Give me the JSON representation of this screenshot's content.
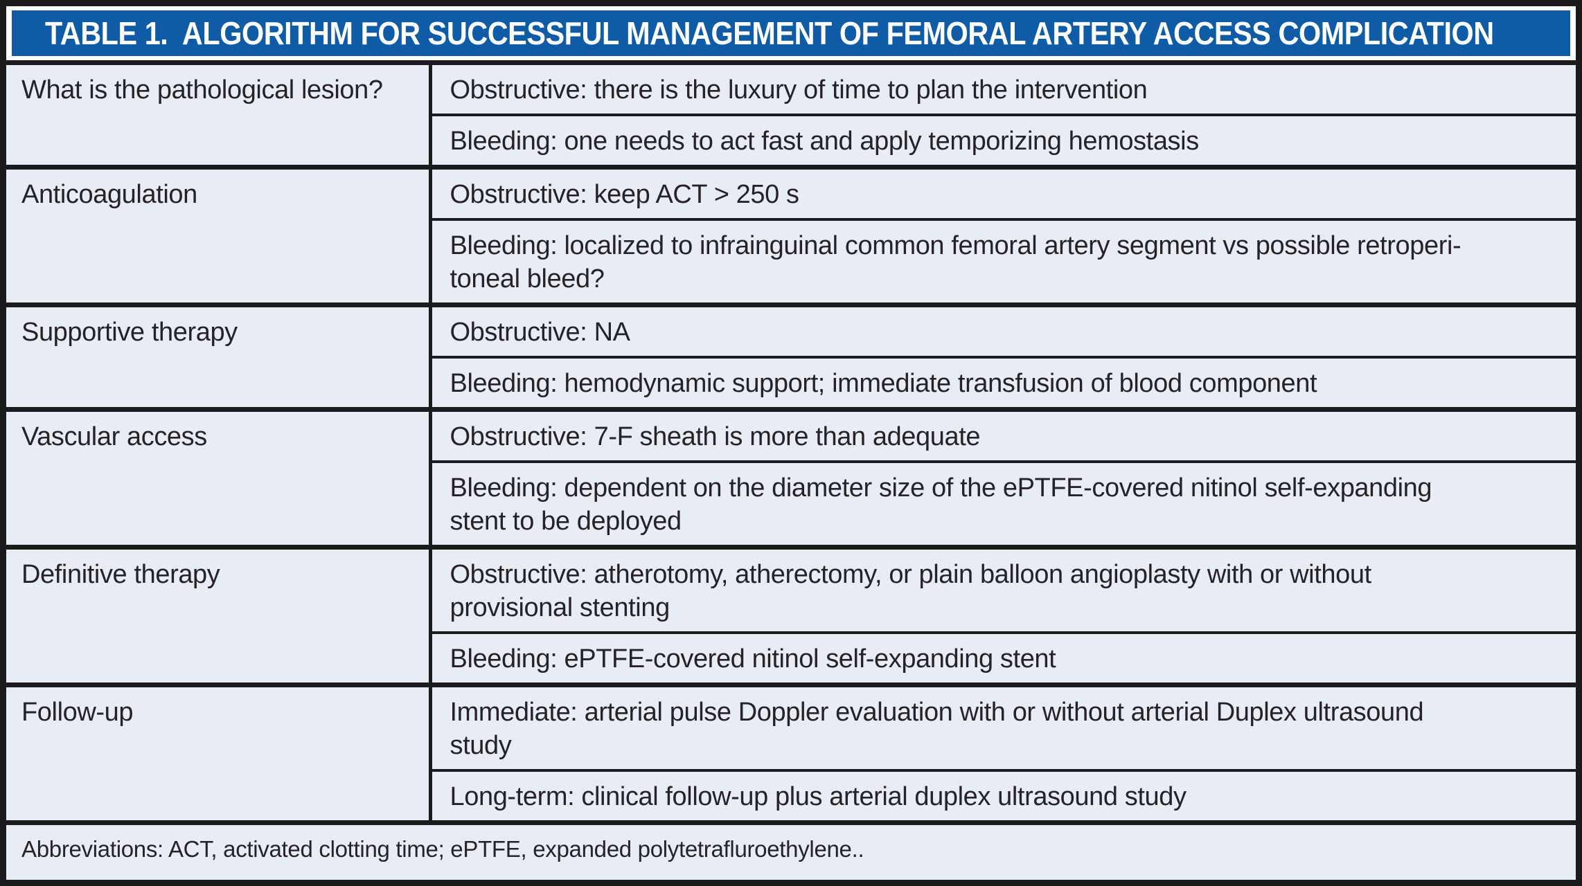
{
  "table": {
    "title": "TABLE 1.  ALGORITHM FOR SUCCESSFUL MANAGEMENT OF FEMORAL ARTERY ACCESS COMPLICATION",
    "rows": [
      {
        "label": "What is the pathological lesion?",
        "entries": [
          "Obstructive: there is the luxury of time to plan the intervention",
          "Bleeding: one needs to act fast and apply temporizing hemostasis"
        ]
      },
      {
        "label": "Anticoagulation",
        "entries": [
          "Obstructive: keep ACT > 250 s",
          "Bleeding: localized to infrainguinal common femoral artery segment vs possible retroperi-\ntoneal bleed?"
        ]
      },
      {
        "label": "Supportive therapy",
        "entries": [
          "Obstructive: NA",
          "Bleeding: hemodynamic support; immediate transfusion of blood component"
        ]
      },
      {
        "label": "Vascular access",
        "entries": [
          "Obstructive: 7-F sheath is more than adequate",
          "Bleeding: dependent on the diameter size of the ePTFE-covered nitinol self-expanding\nstent to be deployed"
        ]
      },
      {
        "label": "Definitive therapy",
        "entries": [
          "Obstructive: atherotomy, atherectomy, or plain balloon angioplasty with or without\nprovisional stenting",
          "Bleeding: ePTFE-covered nitinol self-expanding stent"
        ]
      },
      {
        "label": "Follow-up",
        "entries": [
          "Immediate: arterial pulse Doppler evaluation with or without arterial Duplex ultrasound\nstudy",
          "Long-term: clinical follow-up plus arterial duplex ultrasound study"
        ]
      }
    ],
    "footnote": "Abbreviations: ACT, activated clotting time; ePTFE, expanded polytetrafluroethylene.."
  },
  "colors": {
    "header_bg": "#0f5ba6",
    "header_text": "#ffffff",
    "cell_bg": "#e8ecf5",
    "border": "#1b1b1d",
    "body_text": "#272226"
  }
}
